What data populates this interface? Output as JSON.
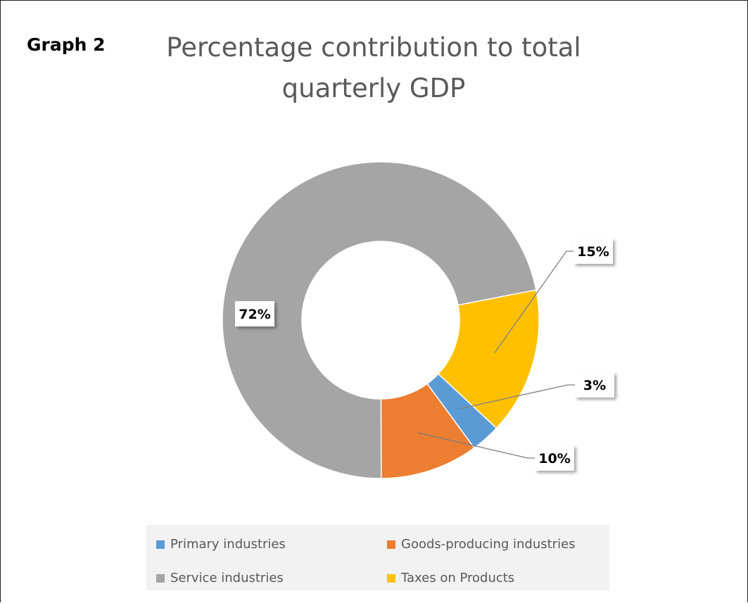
{
  "header": {
    "label": "Graph 2",
    "title_line1": "Percentage contribution to total",
    "title_line2": "quarterly GDP"
  },
  "chart_data": {
    "type": "pie",
    "variant": "donut",
    "title": "Percentage contribution to total quarterly GDP",
    "categories": [
      "Primary industries",
      "Goods-producing industries",
      "Service industries",
      "Taxes on Products"
    ],
    "values": [
      3,
      10,
      72,
      15
    ],
    "data_labels": [
      "3%",
      "10%",
      "72%",
      "15%"
    ],
    "colors": [
      "#5b9bd5",
      "#ed7d31",
      "#a5a5a5",
      "#ffc000"
    ],
    "legend_position": "bottom",
    "legend": [
      {
        "label": "Primary industries",
        "color": "#5b9bd5"
      },
      {
        "label": "Goods-producing industries",
        "color": "#ed7d31"
      },
      {
        "label": "Service industries",
        "color": "#a5a5a5"
      },
      {
        "label": "Taxes on Products",
        "color": "#ffc000"
      }
    ]
  }
}
